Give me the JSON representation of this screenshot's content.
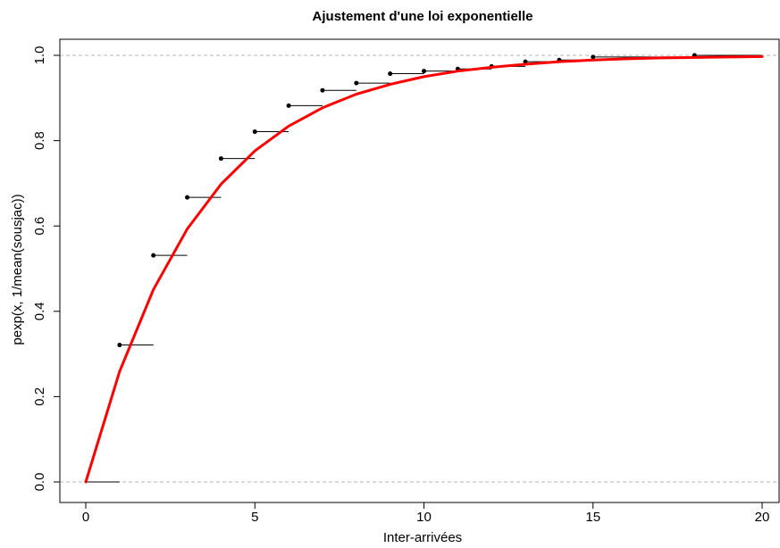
{
  "chart_data": {
    "type": "line",
    "title": "Ajustement d'une loi exponentielle",
    "xlabel": "Inter-arrivées",
    "ylabel": "pexp(x, 1/mean(sousjac))",
    "xlim": [
      0,
      20
    ],
    "ylim": [
      0,
      1
    ],
    "x_ticks": [
      0,
      5,
      10,
      15,
      20
    ],
    "y_ticks": [
      0.0,
      0.2,
      0.4,
      0.6,
      0.8,
      1.0
    ],
    "x_tick_labels": [
      "0",
      "5",
      "10",
      "15",
      "20"
    ],
    "y_tick_labels": [
      "0.0",
      "0.2",
      "0.4",
      "0.6",
      "0.8",
      "1.0"
    ],
    "grid": false,
    "reference_lines_y": [
      0,
      1
    ],
    "colors": {
      "ecdf": "#000000",
      "fit": "#ff0000",
      "reference": "#b4b4b4"
    },
    "ecdf": {
      "x": [
        1,
        2,
        3,
        4,
        5,
        6,
        7,
        8,
        9,
        10,
        11,
        12,
        13,
        14,
        15,
        18
      ],
      "y": [
        0.321,
        0.531,
        0.667,
        0.758,
        0.821,
        0.882,
        0.918,
        0.935,
        0.957,
        0.963,
        0.968,
        0.974,
        0.985,
        0.989,
        0.996,
        1.0
      ]
    },
    "fit": {
      "x": [
        0,
        1,
        2,
        3,
        4,
        5,
        6,
        7,
        8,
        9,
        10,
        11,
        12,
        13,
        14,
        15,
        16,
        17,
        18,
        19,
        20
      ],
      "y": [
        0.0,
        0.259,
        0.451,
        0.593,
        0.698,
        0.776,
        0.834,
        0.877,
        0.909,
        0.932,
        0.95,
        0.963,
        0.972,
        0.979,
        0.985,
        0.989,
        0.992,
        0.994,
        0.995,
        0.996,
        0.997
      ]
    }
  }
}
